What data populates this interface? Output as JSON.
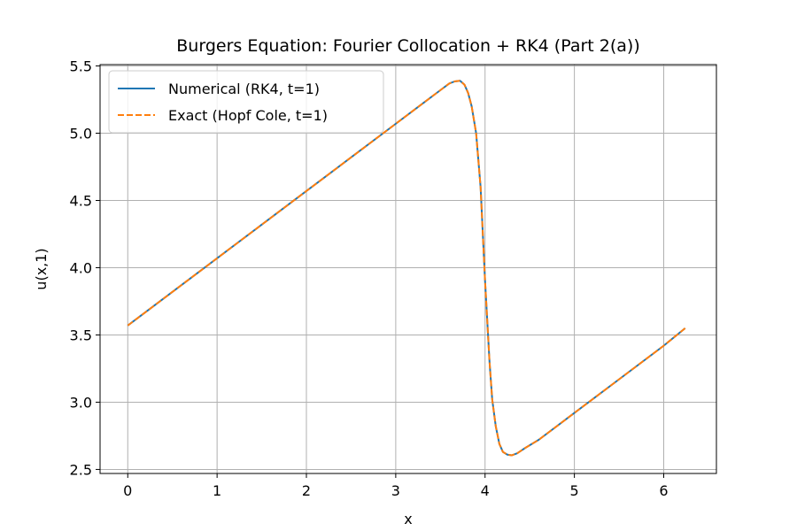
{
  "chart_data": {
    "type": "line",
    "title": "Burgers Equation: Fourier Collocation + RK4 (Part 2(a))",
    "xlabel": "x",
    "ylabel": "u(x,1)",
    "xlim": [
      -0.31,
      6.59
    ],
    "ylim": [
      2.47,
      5.51
    ],
    "xticks": [
      0,
      1,
      2,
      3,
      4,
      5,
      6
    ],
    "xtick_labels": [
      "0",
      "1",
      "2",
      "3",
      "4",
      "5",
      "6"
    ],
    "yticks": [
      2.5,
      3.0,
      3.5,
      4.0,
      4.5,
      5.0,
      5.5
    ],
    "ytick_labels": [
      "2.5",
      "3.0",
      "3.5",
      "4.0",
      "4.5",
      "5.0",
      "5.5"
    ],
    "grid": true,
    "legend_position": "top-left",
    "series": [
      {
        "name": "Numerical (RK4, t=1)",
        "color": "#1f77b4",
        "style": "solid",
        "x": [
          0.0,
          0.5,
          1.0,
          1.5,
          2.0,
          2.5,
          3.0,
          3.3,
          3.5,
          3.6,
          3.66,
          3.72,
          3.77,
          3.81,
          3.85,
          3.9,
          3.95,
          4.0,
          4.05,
          4.08,
          4.12,
          4.16,
          4.2,
          4.25,
          4.3,
          4.36,
          4.45,
          4.6,
          5.0,
          5.5,
          6.0,
          6.24
        ],
        "y": [
          3.57,
          3.82,
          4.07,
          4.32,
          4.57,
          4.82,
          5.07,
          5.22,
          5.32,
          5.37,
          5.385,
          5.39,
          5.36,
          5.3,
          5.2,
          5.0,
          4.6,
          3.9,
          3.3,
          3.02,
          2.82,
          2.69,
          2.63,
          2.61,
          2.605,
          2.62,
          2.66,
          2.72,
          2.92,
          3.17,
          3.42,
          3.55
        ]
      },
      {
        "name": "Exact (Hopf Cole, t=1)",
        "color": "#ff7f0e",
        "style": "dashed",
        "x": [
          0.0,
          0.5,
          1.0,
          1.5,
          2.0,
          2.5,
          3.0,
          3.3,
          3.5,
          3.6,
          3.66,
          3.72,
          3.77,
          3.81,
          3.85,
          3.9,
          3.95,
          4.0,
          4.05,
          4.08,
          4.12,
          4.16,
          4.2,
          4.25,
          4.3,
          4.36,
          4.45,
          4.6,
          5.0,
          5.5,
          6.0,
          6.24
        ],
        "y": [
          3.57,
          3.82,
          4.07,
          4.32,
          4.57,
          4.82,
          5.07,
          5.22,
          5.32,
          5.37,
          5.385,
          5.39,
          5.36,
          5.3,
          5.2,
          5.0,
          4.6,
          3.9,
          3.3,
          3.02,
          2.82,
          2.69,
          2.63,
          2.61,
          2.605,
          2.62,
          2.66,
          2.72,
          2.92,
          3.17,
          3.42,
          3.55
        ]
      }
    ]
  }
}
